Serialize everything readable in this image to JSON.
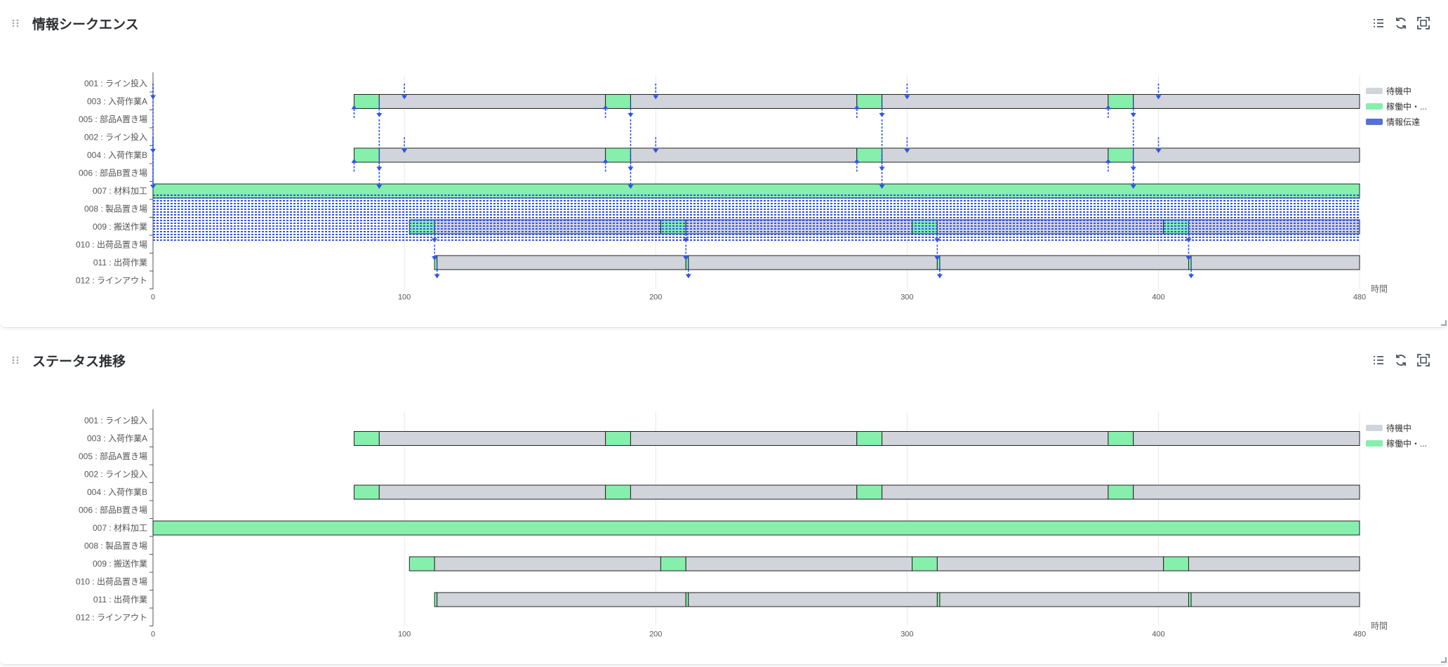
{
  "panels": [
    {
      "title": "情報シークエンス"
    },
    {
      "title": "ステータス推移"
    }
  ],
  "colors": {
    "waiting": "#d1d5db",
    "active": "#86efac",
    "info": "#2f54eb",
    "axis": "#555555"
  },
  "icons": [
    "drag-handle-icon",
    "legend-list-icon",
    "refresh-icon",
    "fullscreen-icon"
  ],
  "chart_data": [
    {
      "type": "gantt",
      "title": "情報シークエンス",
      "xlabel": "時間",
      "xlim": [
        0,
        480
      ],
      "xticks": [
        0,
        100,
        200,
        300,
        400,
        480
      ],
      "grid": true,
      "legend_position": "right",
      "legend": [
        "待機中",
        "稼働中・...",
        "情報伝達"
      ],
      "rows": [
        "001 : ライン投入",
        "003 : 入荷作業A",
        "005 : 部品A置き場",
        "002 : ライン投入",
        "004 : 入荷作業B",
        "006 : 部品B置き場",
        "007 : 材料加工",
        "008 : 製品置き場",
        "009 : 搬送作業",
        "010 : 出荷品置き場",
        "011 : 出荷作業",
        "012 : ラインアウト"
      ],
      "segments": [
        {
          "row": 1,
          "state": "active",
          "start": 80,
          "end": 90
        },
        {
          "row": 1,
          "state": "waiting",
          "start": 90,
          "end": 180
        },
        {
          "row": 1,
          "state": "active",
          "start": 180,
          "end": 190
        },
        {
          "row": 1,
          "state": "waiting",
          "start": 190,
          "end": 280
        },
        {
          "row": 1,
          "state": "active",
          "start": 280,
          "end": 290
        },
        {
          "row": 1,
          "state": "waiting",
          "start": 290,
          "end": 380
        },
        {
          "row": 1,
          "state": "active",
          "start": 380,
          "end": 390
        },
        {
          "row": 1,
          "state": "waiting",
          "start": 390,
          "end": 480
        },
        {
          "row": 4,
          "state": "active",
          "start": 80,
          "end": 90
        },
        {
          "row": 4,
          "state": "waiting",
          "start": 90,
          "end": 180
        },
        {
          "row": 4,
          "state": "active",
          "start": 180,
          "end": 190
        },
        {
          "row": 4,
          "state": "waiting",
          "start": 190,
          "end": 280
        },
        {
          "row": 4,
          "state": "active",
          "start": 280,
          "end": 290
        },
        {
          "row": 4,
          "state": "waiting",
          "start": 290,
          "end": 380
        },
        {
          "row": 4,
          "state": "active",
          "start": 380,
          "end": 390
        },
        {
          "row": 4,
          "state": "waiting",
          "start": 390,
          "end": 480
        },
        {
          "row": 6,
          "state": "active",
          "start": 0,
          "end": 480
        },
        {
          "row": 8,
          "state": "active",
          "start": 102,
          "end": 112
        },
        {
          "row": 8,
          "state": "waiting",
          "start": 112,
          "end": 202
        },
        {
          "row": 8,
          "state": "active",
          "start": 202,
          "end": 212
        },
        {
          "row": 8,
          "state": "waiting",
          "start": 212,
          "end": 302
        },
        {
          "row": 8,
          "state": "active",
          "start": 302,
          "end": 312
        },
        {
          "row": 8,
          "state": "waiting",
          "start": 312,
          "end": 402
        },
        {
          "row": 8,
          "state": "active",
          "start": 402,
          "end": 412
        },
        {
          "row": 8,
          "state": "waiting",
          "start": 412,
          "end": 480
        },
        {
          "row": 10,
          "state": "active",
          "start": 112,
          "end": 113
        },
        {
          "row": 10,
          "state": "waiting",
          "start": 113,
          "end": 212
        },
        {
          "row": 10,
          "state": "active",
          "start": 212,
          "end": 213
        },
        {
          "row": 10,
          "state": "waiting",
          "start": 213,
          "end": 312
        },
        {
          "row": 10,
          "state": "active",
          "start": 312,
          "end": 313
        },
        {
          "row": 10,
          "state": "waiting",
          "start": 313,
          "end": 412
        },
        {
          "row": 10,
          "state": "active",
          "start": 412,
          "end": 413
        },
        {
          "row": 10,
          "state": "waiting",
          "start": 413,
          "end": 480
        }
      ],
      "info_transfers": [
        {
          "from": 0,
          "to": 1,
          "t": 0
        },
        {
          "from": 3,
          "to": 4,
          "t": 0
        },
        {
          "from": 0,
          "to": 6,
          "t": 0
        },
        {
          "from": 3,
          "to": 6,
          "t": 0
        },
        {
          "from": 2,
          "to": 1,
          "t": 80
        },
        {
          "from": 5,
          "to": 4,
          "t": 80
        },
        {
          "from": 1,
          "to": 2,
          "t": 90
        },
        {
          "from": 4,
          "to": 5,
          "t": 90
        },
        {
          "from": 2,
          "to": 6,
          "t": 90
        },
        {
          "from": 0,
          "to": 1,
          "t": 100
        },
        {
          "from": 3,
          "to": 4,
          "t": 100
        },
        {
          "from": 2,
          "to": 1,
          "t": 180
        },
        {
          "from": 5,
          "to": 4,
          "t": 180
        },
        {
          "from": 1,
          "to": 2,
          "t": 190
        },
        {
          "from": 4,
          "to": 5,
          "t": 190
        },
        {
          "from": 2,
          "to": 6,
          "t": 190
        },
        {
          "from": 0,
          "to": 1,
          "t": 200
        },
        {
          "from": 3,
          "to": 4,
          "t": 200
        },
        {
          "from": 2,
          "to": 1,
          "t": 280
        },
        {
          "from": 5,
          "to": 4,
          "t": 280
        },
        {
          "from": 1,
          "to": 2,
          "t": 290
        },
        {
          "from": 4,
          "to": 5,
          "t": 290
        },
        {
          "from": 2,
          "to": 6,
          "t": 290
        },
        {
          "from": 0,
          "to": 1,
          "t": 300
        },
        {
          "from": 3,
          "to": 4,
          "t": 300
        },
        {
          "from": 2,
          "to": 1,
          "t": 380
        },
        {
          "from": 5,
          "to": 4,
          "t": 380
        },
        {
          "from": 1,
          "to": 2,
          "t": 390
        },
        {
          "from": 4,
          "to": 5,
          "t": 390
        },
        {
          "from": 2,
          "to": 6,
          "t": 390
        },
        {
          "from": 0,
          "to": 1,
          "t": 400
        },
        {
          "from": 3,
          "to": 4,
          "t": 400
        },
        {
          "from": 8,
          "to": 9,
          "t": 112
        },
        {
          "from": 9,
          "to": 10,
          "t": 112
        },
        {
          "from": 10,
          "to": 11,
          "t": 113
        },
        {
          "from": 8,
          "to": 9,
          "t": 212
        },
        {
          "from": 9,
          "to": 10,
          "t": 212
        },
        {
          "from": 10,
          "to": 11,
          "t": 213
        },
        {
          "from": 8,
          "to": 9,
          "t": 312
        },
        {
          "from": 9,
          "to": 10,
          "t": 312
        },
        {
          "from": 10,
          "to": 11,
          "t": 313
        },
        {
          "from": 8,
          "to": 9,
          "t": 412
        },
        {
          "from": 9,
          "to": 10,
          "t": 412
        },
        {
          "from": 10,
          "to": 11,
          "t": 413
        }
      ],
      "dense_info_band": {
        "from": 6,
        "to": 8,
        "start": 0,
        "end": 480
      }
    },
    {
      "type": "gantt",
      "title": "ステータス推移",
      "xlabel": "時間",
      "xlim": [
        0,
        480
      ],
      "xticks": [
        0,
        100,
        200,
        300,
        400,
        480
      ],
      "grid": true,
      "legend_position": "right",
      "legend": [
        "待機中",
        "稼働中・..."
      ],
      "rows": [
        "001 : ライン投入",
        "003 : 入荷作業A",
        "005 : 部品A置き場",
        "002 : ライン投入",
        "004 : 入荷作業B",
        "006 : 部品B置き場",
        "007 : 材料加工",
        "008 : 製品置き場",
        "009 : 搬送作業",
        "010 : 出荷品置き場",
        "011 : 出荷作業",
        "012 : ラインアウト"
      ],
      "segments": [
        {
          "row": 1,
          "state": "active",
          "start": 80,
          "end": 90
        },
        {
          "row": 1,
          "state": "waiting",
          "start": 90,
          "end": 180
        },
        {
          "row": 1,
          "state": "active",
          "start": 180,
          "end": 190
        },
        {
          "row": 1,
          "state": "waiting",
          "start": 190,
          "end": 280
        },
        {
          "row": 1,
          "state": "active",
          "start": 280,
          "end": 290
        },
        {
          "row": 1,
          "state": "waiting",
          "start": 290,
          "end": 380
        },
        {
          "row": 1,
          "state": "active",
          "start": 380,
          "end": 390
        },
        {
          "row": 1,
          "state": "waiting",
          "start": 390,
          "end": 480
        },
        {
          "row": 4,
          "state": "active",
          "start": 80,
          "end": 90
        },
        {
          "row": 4,
          "state": "waiting",
          "start": 90,
          "end": 180
        },
        {
          "row": 4,
          "state": "active",
          "start": 180,
          "end": 190
        },
        {
          "row": 4,
          "state": "waiting",
          "start": 190,
          "end": 280
        },
        {
          "row": 4,
          "state": "active",
          "start": 280,
          "end": 290
        },
        {
          "row": 4,
          "state": "waiting",
          "start": 290,
          "end": 380
        },
        {
          "row": 4,
          "state": "active",
          "start": 380,
          "end": 390
        },
        {
          "row": 4,
          "state": "waiting",
          "start": 390,
          "end": 480
        },
        {
          "row": 6,
          "state": "active",
          "start": 0,
          "end": 480
        },
        {
          "row": 8,
          "state": "active",
          "start": 102,
          "end": 112
        },
        {
          "row": 8,
          "state": "waiting",
          "start": 112,
          "end": 202
        },
        {
          "row": 8,
          "state": "active",
          "start": 202,
          "end": 212
        },
        {
          "row": 8,
          "state": "waiting",
          "start": 212,
          "end": 302
        },
        {
          "row": 8,
          "state": "active",
          "start": 302,
          "end": 312
        },
        {
          "row": 8,
          "state": "waiting",
          "start": 312,
          "end": 402
        },
        {
          "row": 8,
          "state": "active",
          "start": 402,
          "end": 412
        },
        {
          "row": 8,
          "state": "waiting",
          "start": 412,
          "end": 480
        },
        {
          "row": 10,
          "state": "active",
          "start": 112,
          "end": 113
        },
        {
          "row": 10,
          "state": "waiting",
          "start": 113,
          "end": 212
        },
        {
          "row": 10,
          "state": "active",
          "start": 212,
          "end": 213
        },
        {
          "row": 10,
          "state": "waiting",
          "start": 213,
          "end": 312
        },
        {
          "row": 10,
          "state": "active",
          "start": 312,
          "end": 313
        },
        {
          "row": 10,
          "state": "waiting",
          "start": 313,
          "end": 412
        },
        {
          "row": 10,
          "state": "active",
          "start": 412,
          "end": 413
        },
        {
          "row": 10,
          "state": "waiting",
          "start": 413,
          "end": 480
        }
      ]
    }
  ]
}
